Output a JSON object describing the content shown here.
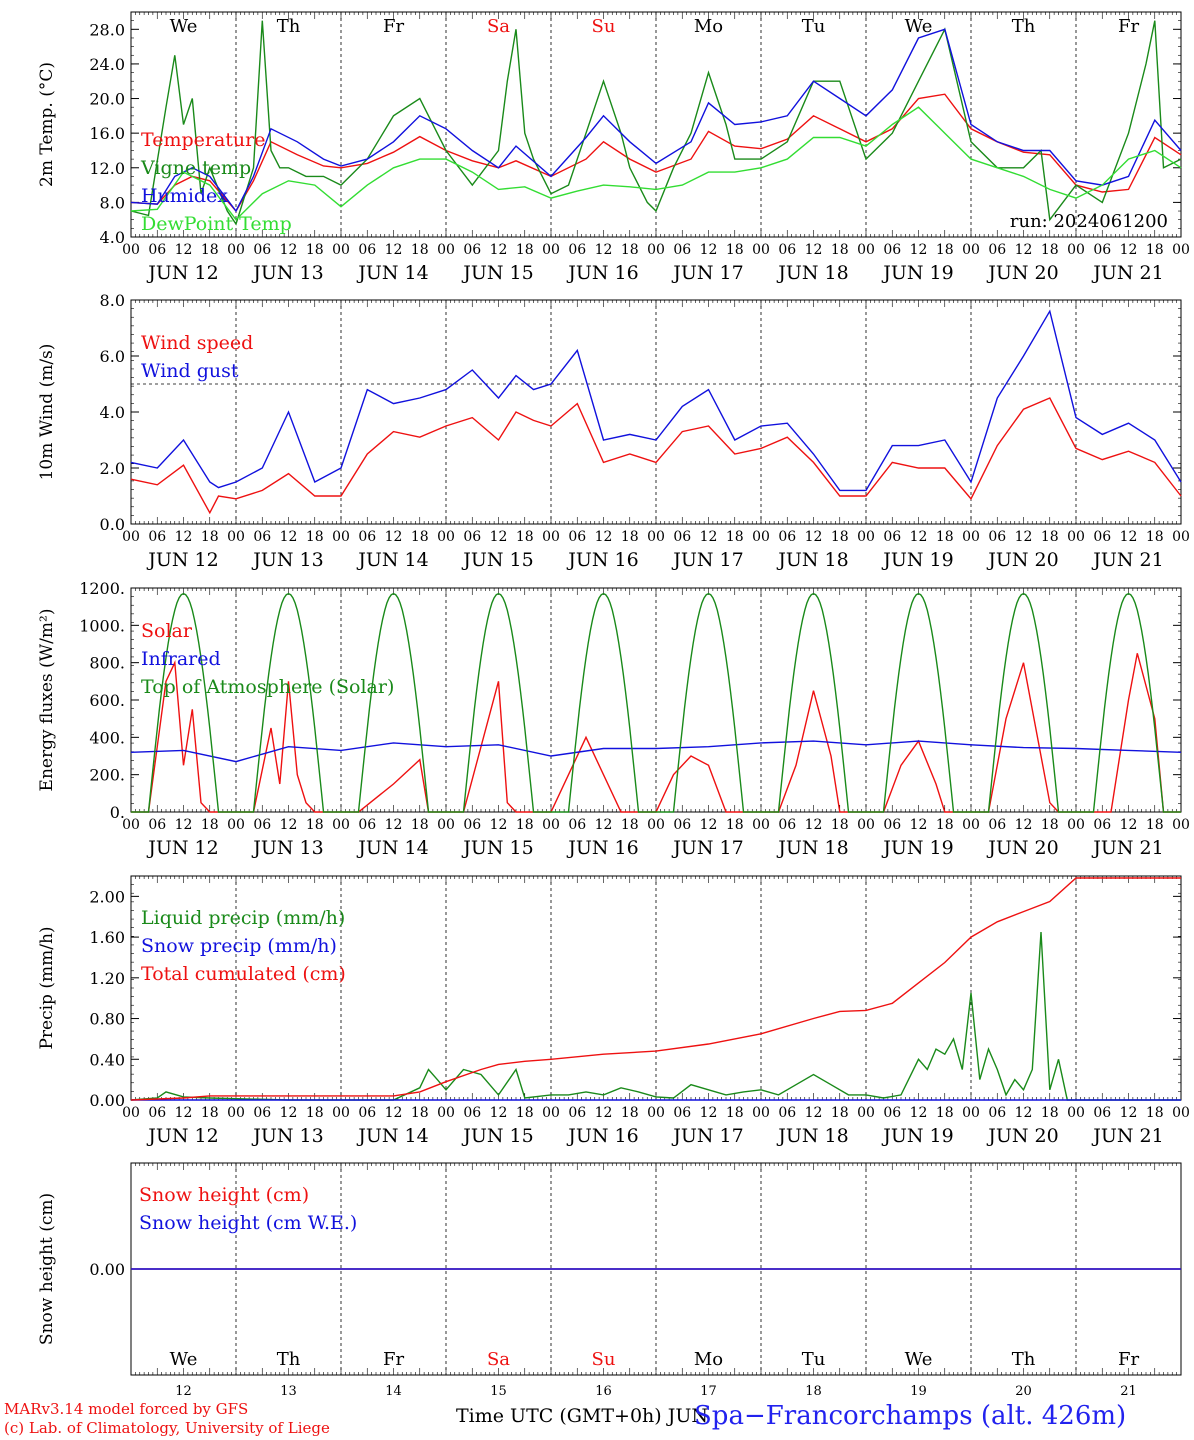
{
  "location": "Spa−Francorchamps (alt. 426m)",
  "credits": [
    "MARv3.14 model forced by GFS",
    "(c) Lab. of Climatology, University of Liege"
  ],
  "time_axis": {
    "title": "Time UTC (GMT+0h) JUN",
    "hour_ticks": [
      "00",
      "06",
      "12",
      "18"
    ],
    "day_labels": [
      "JUN 12",
      "JUN 13",
      "JUN 14",
      "JUN 15",
      "JUN 16",
      "JUN 17",
      "JUN 18",
      "JUN 19",
      "JUN 20",
      "JUN 21"
    ],
    "final_tick": "00",
    "weekdays": [
      "We",
      "Th",
      "Fr",
      "Sa",
      "Su",
      "Mo",
      "Tu",
      "We",
      "Th",
      "Fr"
    ],
    "weekend_color": "#ee1111",
    "day_numbers": [
      "12",
      "13",
      "14",
      "15",
      "16",
      "17",
      "18",
      "19",
      "20",
      "21"
    ]
  },
  "colors": {
    "red": "#ee1111",
    "darkgreen": "#1a8a1a",
    "blue": "#1111dd",
    "lightgreen": "#33dd33",
    "purple": "#882299"
  },
  "chart_data": [
    {
      "type": "line",
      "ylabel": "2m Temp. (°C)",
      "ylim": [
        4,
        30
      ],
      "yticks": [
        "4.0",
        "8.0",
        "12.0",
        "16.0",
        "20.0",
        "24.0",
        "28.0"
      ],
      "annotation": "run: 2024061200",
      "x_unit": "hours since JUN 12 00 UTC",
      "series": [
        {
          "name": "Temperature",
          "color": "#ee1111",
          "x": [
            0,
            6,
            10,
            14,
            18,
            24,
            28,
            32,
            38,
            44,
            48,
            54,
            60,
            66,
            72,
            78,
            84,
            88,
            96,
            104,
            108,
            114,
            120,
            128,
            132,
            138,
            144,
            150,
            156,
            162,
            168,
            174,
            180,
            186,
            192,
            198,
            204,
            210,
            216,
            222,
            228,
            234,
            240
          ],
          "values": [
            8,
            7.8,
            10,
            11,
            10.5,
            7,
            10.5,
            15,
            13.5,
            12.2,
            12,
            12.5,
            13.8,
            15.6,
            14,
            12.8,
            12,
            12.8,
            11,
            13,
            15,
            13,
            11.5,
            13,
            16.2,
            14.5,
            14.2,
            15.3,
            18,
            16.5,
            15,
            16.5,
            20,
            20.5,
            16.5,
            15,
            13.8,
            13.5,
            10,
            9.2,
            9.5,
            15.5,
            13.5
          ]
        },
        {
          "name": "Vigne temp",
          "color": "#1a8a1a",
          "x": [
            0,
            4,
            8,
            10,
            12,
            14,
            16,
            18,
            22,
            24,
            28,
            30,
            32,
            34,
            36,
            40,
            44,
            48,
            54,
            60,
            66,
            72,
            78,
            84,
            86,
            88,
            90,
            92,
            96,
            100,
            104,
            108,
            112,
            114,
            118,
            120,
            124,
            128,
            132,
            136,
            138,
            144,
            150,
            156,
            162,
            168,
            174,
            180,
            186,
            192,
            198,
            204,
            208,
            210,
            216,
            222,
            228,
            232,
            234,
            236,
            240
          ],
          "values": [
            7,
            6.5,
            19,
            25,
            17,
            20,
            9,
            12,
            7,
            5.5,
            12,
            29,
            14,
            12,
            12,
            11,
            11,
            10,
            13,
            18,
            20,
            14,
            10,
            14,
            22,
            28,
            16,
            13,
            9,
            10,
            16,
            22,
            16,
            12,
            8,
            7,
            12,
            16,
            23,
            17,
            13,
            13,
            15,
            22,
            22,
            13,
            16,
            22,
            28,
            15,
            12,
            12,
            14,
            6,
            10,
            8,
            16,
            24,
            29,
            12,
            13
          ]
        },
        {
          "name": "Humidex",
          "color": "#1111dd",
          "x": [
            0,
            6,
            10,
            14,
            18,
            24,
            28,
            32,
            38,
            44,
            48,
            54,
            60,
            66,
            72,
            78,
            84,
            88,
            96,
            104,
            108,
            114,
            120,
            128,
            132,
            138,
            144,
            150,
            156,
            162,
            168,
            174,
            180,
            186,
            192,
            198,
            204,
            210,
            216,
            222,
            228,
            234,
            240
          ],
          "values": [
            8,
            7.8,
            11,
            12,
            11,
            7,
            11,
            16.5,
            15,
            13,
            12.2,
            13,
            15,
            18,
            16.5,
            14,
            12,
            14.5,
            11,
            15.5,
            18,
            15,
            12.5,
            15,
            19.5,
            17,
            17.3,
            18,
            22,
            20,
            18,
            21,
            27,
            28,
            17,
            15,
            14,
            14,
            10.5,
            10,
            11,
            17.5,
            14
          ]
        },
        {
          "name": "DewPoint Temp",
          "color": "#33dd33",
          "x": [
            0,
            6,
            12,
            18,
            24,
            30,
            36,
            42,
            48,
            54,
            60,
            66,
            72,
            78,
            84,
            90,
            96,
            102,
            108,
            114,
            120,
            126,
            132,
            138,
            144,
            150,
            156,
            162,
            168,
            174,
            180,
            186,
            192,
            198,
            204,
            210,
            216,
            222,
            228,
            234,
            240
          ],
          "values": [
            7,
            7.2,
            11.5,
            10,
            6,
            9,
            10.5,
            10,
            7.5,
            10,
            12,
            13,
            13,
            11.5,
            9.5,
            9.8,
            8.5,
            9.3,
            10,
            9.8,
            9.5,
            10,
            11.5,
            11.5,
            12,
            13,
            15.5,
            15.5,
            14.5,
            17,
            19,
            16,
            13,
            12,
            11,
            9.5,
            8.5,
            10,
            13,
            14,
            12
          ]
        }
      ]
    },
    {
      "type": "line",
      "ylabel": "10m Wind (m/s)",
      "ylim": [
        0,
        8
      ],
      "yticks": [
        "0.0",
        "2.0",
        "4.0",
        "6.0",
        "8.0"
      ],
      "reference_line": 5,
      "x_unit": "hours since JUN 12 00 UTC",
      "series": [
        {
          "name": "Wind speed",
          "color": "#ee1111",
          "x": [
            0,
            6,
            12,
            18,
            20,
            24,
            30,
            36,
            42,
            48,
            54,
            60,
            66,
            72,
            78,
            84,
            88,
            92,
            96,
            102,
            108,
            114,
            120,
            126,
            132,
            138,
            144,
            150,
            156,
            162,
            168,
            174,
            180,
            186,
            192,
            198,
            204,
            210,
            216,
            222,
            228,
            234,
            240
          ],
          "values": [
            1.6,
            1.4,
            2.1,
            0.4,
            1.0,
            0.9,
            1.2,
            1.8,
            1.0,
            1.0,
            2.5,
            3.3,
            3.1,
            3.5,
            3.8,
            3.0,
            4.0,
            3.7,
            3.5,
            4.3,
            2.2,
            2.5,
            2.2,
            3.3,
            3.5,
            2.5,
            2.7,
            3.1,
            2.2,
            1.0,
            1.0,
            2.2,
            2.0,
            2.0,
            0.9,
            2.8,
            4.1,
            4.5,
            2.7,
            2.3,
            2.6,
            2.2,
            1.0
          ]
        },
        {
          "name": "Wind gust",
          "color": "#1111dd",
          "x": [
            0,
            6,
            12,
            18,
            20,
            24,
            30,
            36,
            42,
            48,
            54,
            60,
            66,
            72,
            78,
            84,
            88,
            92,
            96,
            102,
            108,
            114,
            120,
            126,
            132,
            138,
            144,
            150,
            156,
            162,
            168,
            174,
            180,
            186,
            192,
            198,
            204,
            210,
            216,
            222,
            228,
            234,
            240
          ],
          "values": [
            2.2,
            2.0,
            3.0,
            1.5,
            1.3,
            1.5,
            2.0,
            4.0,
            1.5,
            2.0,
            4.8,
            4.3,
            4.5,
            4.8,
            5.5,
            4.5,
            5.3,
            4.8,
            5.0,
            6.2,
            3.0,
            3.2,
            3.0,
            4.2,
            4.8,
            3.0,
            3.5,
            3.6,
            2.5,
            1.2,
            1.2,
            2.8,
            2.8,
            3.0,
            1.5,
            4.5,
            6.0,
            7.6,
            3.8,
            3.2,
            3.6,
            3.0,
            1.5
          ]
        }
      ]
    },
    {
      "type": "line",
      "ylabel": "Energy fluxes (W/m²)",
      "ylim": [
        0,
        1200
      ],
      "yticks": [
        "0.",
        "200.",
        "400.",
        "600.",
        "800.",
        "1000.",
        "1200."
      ],
      "x_unit": "hours since JUN 12 00 UTC",
      "series": [
        {
          "name": "Solar",
          "color": "#ee1111",
          "x": [
            0,
            4,
            8,
            10,
            12,
            14,
            16,
            18,
            20,
            24,
            28,
            32,
            34,
            36,
            38,
            40,
            42,
            44,
            48,
            52,
            60,
            66,
            68,
            72,
            76,
            80,
            84,
            86,
            88,
            90,
            92,
            96,
            100,
            104,
            108,
            112,
            114,
            116,
            120,
            124,
            128,
            132,
            136,
            138,
            144,
            148,
            152,
            156,
            160,
            162,
            168,
            172,
            176,
            180,
            184,
            186,
            188,
            192,
            196,
            200,
            204,
            208,
            210,
            212,
            216,
            220,
            224,
            228,
            230,
            234,
            236,
            240
          ],
          "values": [
            0,
            0,
            700,
            800,
            250,
            550,
            50,
            0,
            0,
            0,
            0,
            450,
            150,
            700,
            200,
            50,
            0,
            0,
            0,
            0,
            150,
            280,
            0,
            0,
            0,
            350,
            700,
            50,
            0,
            0,
            0,
            0,
            200,
            400,
            200,
            0,
            0,
            0,
            0,
            200,
            300,
            250,
            0,
            0,
            0,
            0,
            250,
            650,
            300,
            0,
            0,
            0,
            250,
            380,
            150,
            0,
            0,
            0,
            0,
            500,
            800,
            300,
            50,
            0,
            0,
            0,
            0,
            600,
            850,
            500,
            0,
            0
          ]
        },
        {
          "name": "Infrared",
          "color": "#1111dd",
          "x": [
            0,
            12,
            24,
            36,
            48,
            60,
            72,
            84,
            96,
            108,
            120,
            132,
            144,
            156,
            168,
            180,
            192,
            204,
            216,
            228,
            240
          ],
          "values": [
            320,
            330,
            270,
            350,
            330,
            370,
            350,
            360,
            300,
            340,
            340,
            350,
            370,
            380,
            360,
            380,
            360,
            345,
            340,
            330,
            320
          ]
        },
        {
          "name": "Top of Atmosphere (Solar)",
          "color": "#1a8a1a",
          "shape": "daily_solar",
          "peak": 1170,
          "sunrise_hour": 4,
          "sunset_hour": 20
        }
      ]
    },
    {
      "type": "line",
      "ylabel": "Precip (mm/h)",
      "ylim": [
        0,
        2.2
      ],
      "yticks": [
        "0.00",
        "0.40",
        "0.80",
        "1.20",
        "1.60",
        "2.00"
      ],
      "x_unit": "hours since JUN 12 00 UTC",
      "series": [
        {
          "name": "Liquid precip (mm/h)",
          "color": "#1a8a1a",
          "x": [
            0,
            6,
            8,
            12,
            18,
            36,
            60,
            66,
            68,
            70,
            72,
            76,
            80,
            84,
            88,
            90,
            96,
            100,
            104,
            108,
            112,
            116,
            120,
            124,
            128,
            132,
            136,
            140,
            144,
            148,
            152,
            156,
            160,
            164,
            168,
            172,
            176,
            180,
            182,
            184,
            186,
            188,
            190,
            192,
            194,
            196,
            198,
            200,
            202,
            204,
            206,
            208,
            210,
            212,
            214,
            216,
            240
          ],
          "values": [
            0,
            0.02,
            0.08,
            0.03,
            0.02,
            0,
            0,
            0.12,
            0.3,
            0.2,
            0.1,
            0.3,
            0.25,
            0.05,
            0.3,
            0.02,
            0.05,
            0.05,
            0.08,
            0.05,
            0.12,
            0.08,
            0.03,
            0.02,
            0.15,
            0.1,
            0.05,
            0.08,
            0.1,
            0.05,
            0.15,
            0.25,
            0.15,
            0.05,
            0.05,
            0.02,
            0.05,
            0.4,
            0.3,
            0.5,
            0.45,
            0.6,
            0.3,
            1.05,
            0.2,
            0.5,
            0.3,
            0.05,
            0.2,
            0.1,
            0.3,
            1.65,
            0.1,
            0.4,
            0,
            0,
            0
          ]
        },
        {
          "name": "Snow precip (mm/h)",
          "color": "#1111dd",
          "x": [
            0,
            240
          ],
          "values": [
            0,
            0
          ]
        },
        {
          "name": "Total cumulated (cm)",
          "color": "#ee1111",
          "x": [
            0,
            12,
            18,
            60,
            66,
            72,
            80,
            84,
            90,
            96,
            108,
            120,
            132,
            144,
            156,
            162,
            168,
            174,
            180,
            186,
            192,
            198,
            204,
            210,
            216,
            240
          ],
          "values": [
            0,
            0.02,
            0.04,
            0.04,
            0.08,
            0.18,
            0.3,
            0.35,
            0.38,
            0.4,
            0.45,
            0.48,
            0.55,
            0.65,
            0.8,
            0.87,
            0.88,
            0.95,
            1.15,
            1.35,
            1.6,
            1.75,
            1.85,
            1.95,
            2.18,
            2.18
          ]
        }
      ]
    },
    {
      "type": "line",
      "ylabel": "Snow height (cm)",
      "yticks": [
        "0.00"
      ],
      "series": [
        {
          "name": "Snow height (cm)",
          "color": "#ee1111",
          "x": [
            0,
            240
          ],
          "values": [
            0,
            0
          ]
        },
        {
          "name": "Snow height (cm W.E.)",
          "color": "#1111dd",
          "x": [
            0,
            240
          ],
          "values": [
            0,
            0
          ]
        }
      ]
    }
  ]
}
